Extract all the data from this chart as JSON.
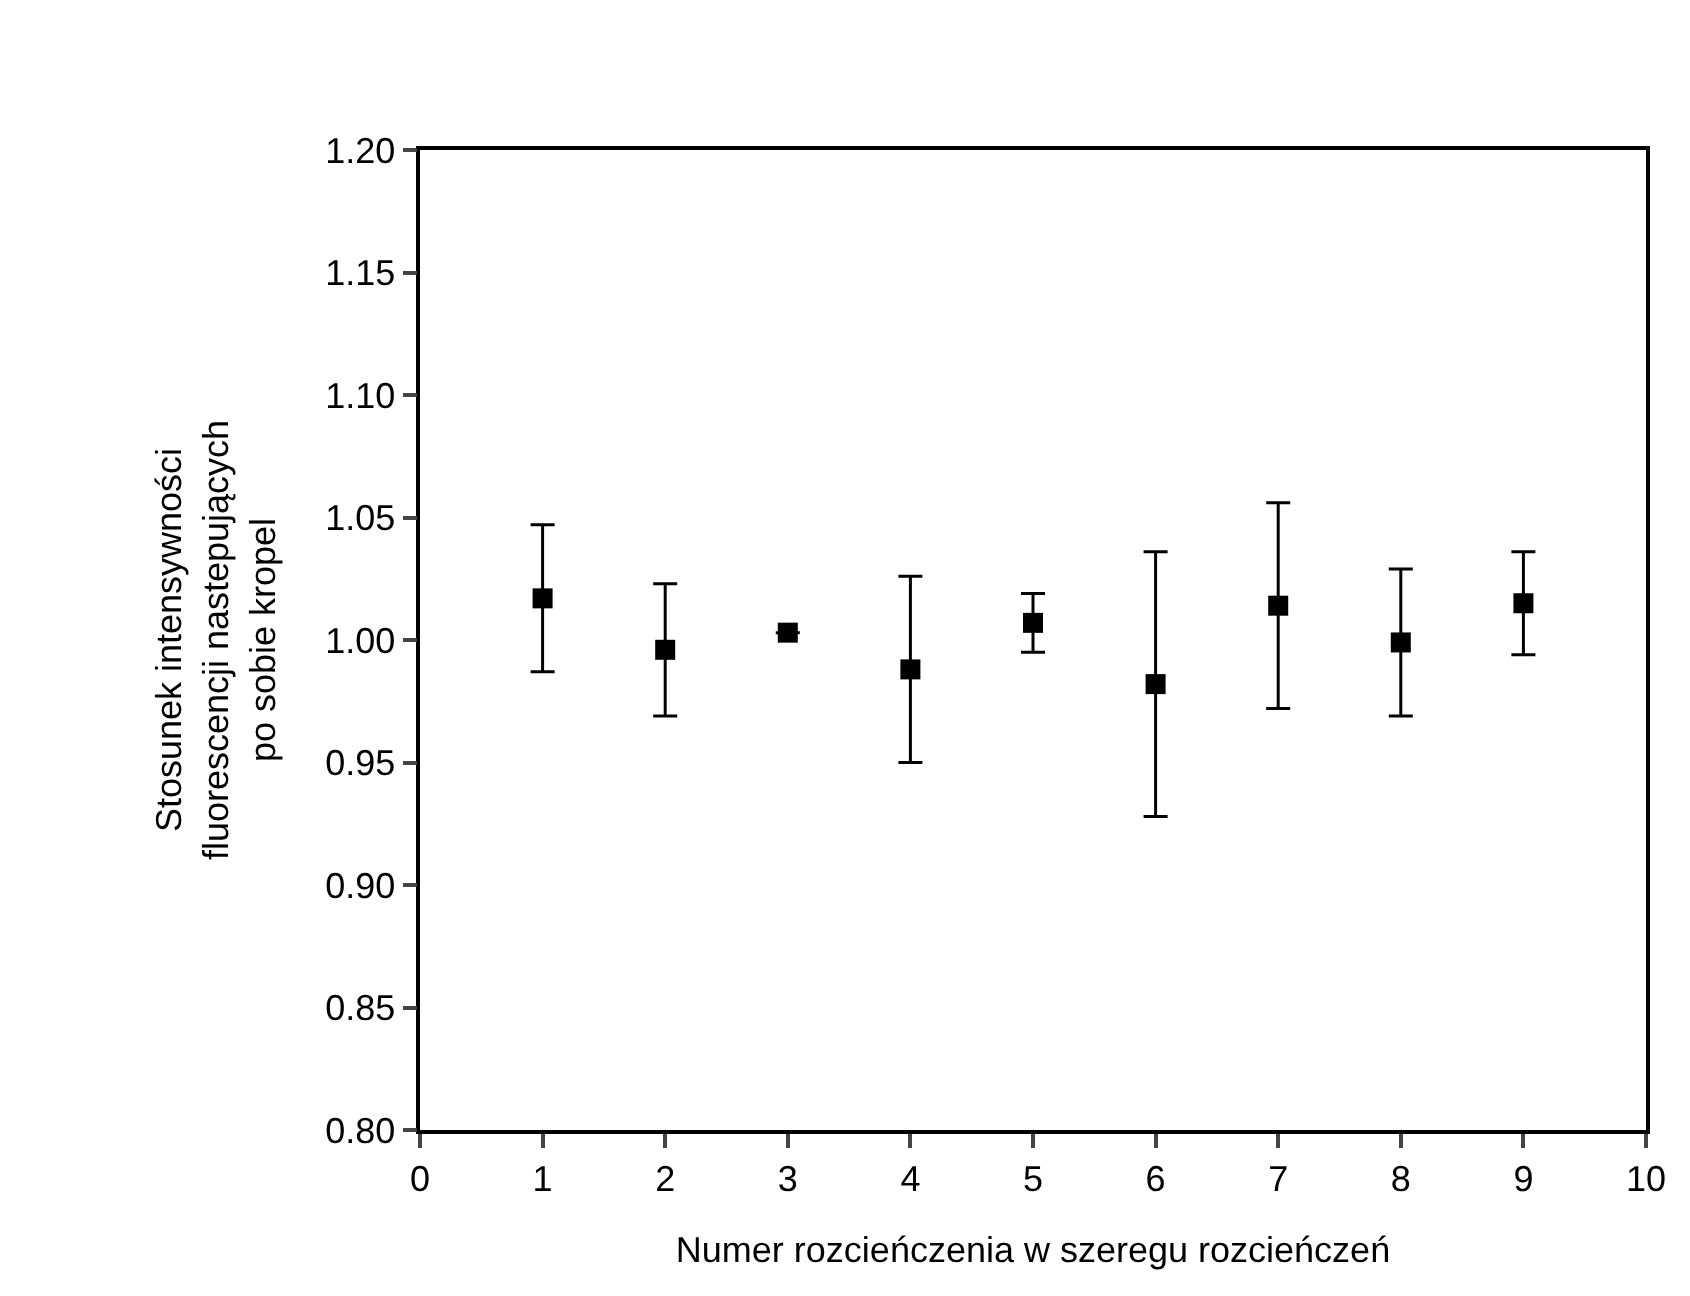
{
  "chart_data": {
    "type": "scatter",
    "xlabel": "Numer rozcieńczenia w szeregu rozcieńczeń",
    "ylabel": "Stosunek intensywności\nfluorescencji nastepujących\npo sobie kropel",
    "x": [
      1,
      2,
      3,
      4,
      5,
      6,
      7,
      8,
      9
    ],
    "series": [
      {
        "color": "#000000",
        "values": [
          1.017,
          0.996,
          1.003,
          0.988,
          1.007,
          0.982,
          1.014,
          0.999,
          1.015
        ],
        "errors": [
          0.03,
          0.027,
          null,
          0.038,
          0.012,
          0.054,
          0.042,
          0.03,
          0.021
        ]
      }
    ],
    "xlim": [
      0,
      10
    ],
    "xticks": [
      0,
      1,
      2,
      3,
      4,
      5,
      6,
      7,
      8,
      9,
      10
    ],
    "ylim": [
      0.8,
      1.2
    ],
    "yticks": [
      {
        "value": 0.8,
        "label": "0.80"
      },
      {
        "value": 0.85,
        "label": "0.85"
      },
      {
        "value": 0.9,
        "label": "0.90"
      },
      {
        "value": 0.95,
        "label": "0.95"
      },
      {
        "value": 1.0,
        "label": "1.00"
      },
      {
        "value": 1.05,
        "label": "1.05"
      },
      {
        "value": 1.1,
        "label": "1.10"
      },
      {
        "value": 1.15,
        "label": "1.15"
      },
      {
        "value": 1.2,
        "label": "1.20"
      }
    ],
    "marker": "square"
  }
}
